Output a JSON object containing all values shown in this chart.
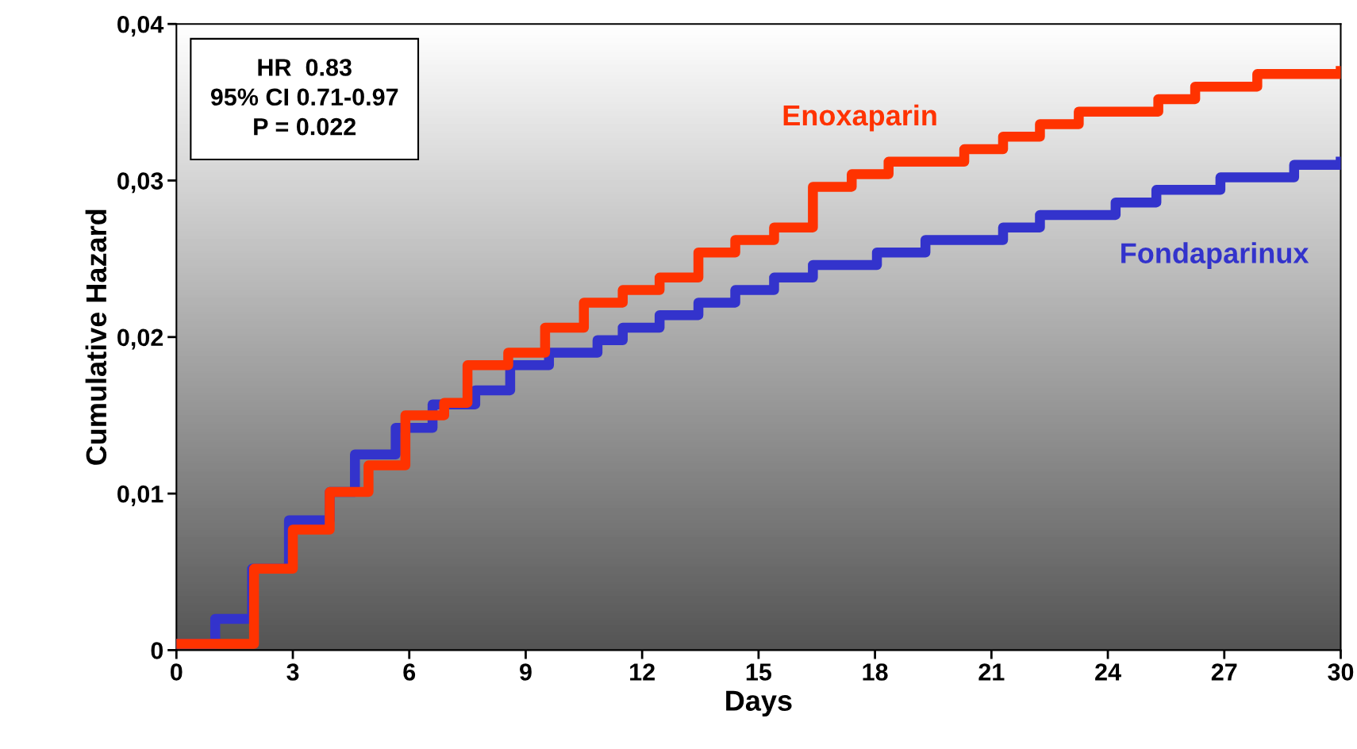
{
  "chart_data": {
    "type": "step",
    "xlabel": "Days",
    "ylabel": "Cumulative Hazard",
    "annotations": [
      "HR  0.83\n95% CI 0.71-0.97\nP = 0.022"
    ],
    "xlim": [
      0,
      30
    ],
    "ylim": [
      0,
      0.04
    ],
    "xticks": [
      0,
      3,
      6,
      9,
      12,
      15,
      18,
      21,
      24,
      27,
      30
    ],
    "yticks": [
      0,
      {
        "value": 0.01,
        "label": "0,01"
      },
      {
        "value": 0.02,
        "label": "0,02"
      },
      {
        "value": 0.03,
        "label": "0,03"
      },
      {
        "value": 0.04,
        "label": "0,04"
      }
    ],
    "grid": false,
    "legend": false,
    "marker": "none",
    "line_style": "solid",
    "series": [
      {
        "name": "Fondaparinux",
        "color": "#3333cc",
        "x": [
          0,
          1.0,
          1.95,
          2.9,
          3.95,
          4.6,
          5.65,
          6.6,
          7.7,
          8.6,
          9.6,
          10.85,
          11.5,
          12.45,
          13.45,
          14.4,
          15.4,
          16.4,
          18.05,
          19.3,
          21.3,
          22.25,
          24.2,
          25.25,
          26.9,
          28.8,
          30
        ],
        "values": [
          0.0004,
          0.002,
          0.0052,
          0.0083,
          0.0101,
          0.0125,
          0.0142,
          0.0157,
          0.0166,
          0.0182,
          0.019,
          0.0198,
          0.0206,
          0.0214,
          0.0222,
          0.023,
          0.0238,
          0.0246,
          0.0254,
          0.0262,
          0.027,
          0.0278,
          0.0286,
          0.0294,
          0.0302,
          0.031,
          0.0312
        ]
      },
      {
        "name": "Enoxaparin",
        "color": "#ff3300",
        "x": [
          0,
          2.0,
          3.0,
          3.95,
          4.95,
          5.9,
          6.9,
          7.5,
          8.55,
          9.5,
          10.5,
          11.5,
          12.45,
          13.45,
          14.4,
          15.4,
          16.4,
          17.4,
          18.35,
          20.3,
          21.3,
          22.25,
          23.25,
          25.3,
          26.25,
          27.85,
          30
        ],
        "values": [
          0.0004,
          0.0052,
          0.0077,
          0.0101,
          0.0118,
          0.015,
          0.0158,
          0.0182,
          0.019,
          0.0206,
          0.0222,
          0.023,
          0.0238,
          0.0254,
          0.0262,
          0.027,
          0.0296,
          0.0304,
          0.0312,
          0.032,
          0.0328,
          0.0336,
          0.0344,
          0.0352,
          0.036,
          0.0368,
          0.037
        ]
      }
    ]
  }
}
